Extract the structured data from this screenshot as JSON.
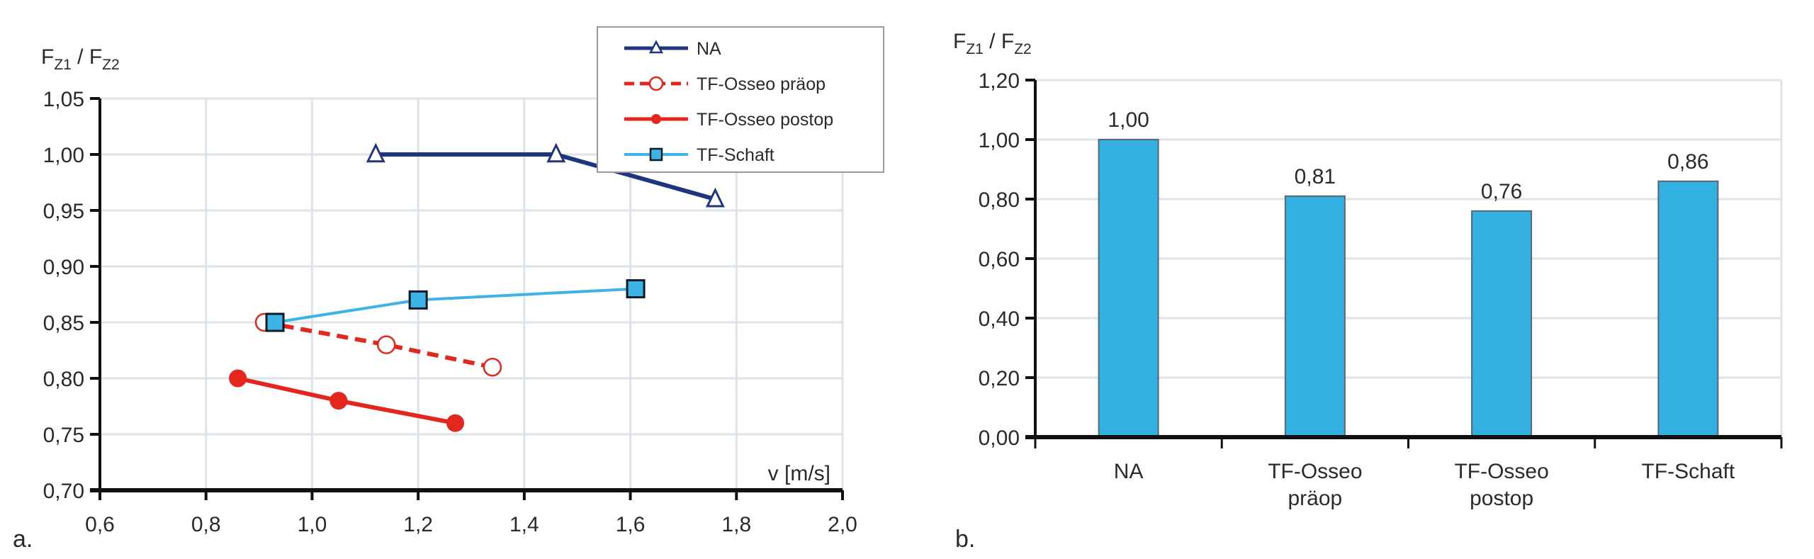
{
  "chart_data": [
    {
      "type": "line",
      "panel_label": "a.",
      "title": "",
      "ylabel": {
        "main": "F",
        "sub1": "Z1",
        "sep": " / ",
        "main2": "F",
        "sub2": "Z2"
      },
      "xlabel": "v [m/s]",
      "xlim": [
        0.6,
        2.0
      ],
      "ylim": [
        0.7,
        1.05
      ],
      "xticks": [
        "0,6",
        "0,8",
        "1,0",
        "1,2",
        "1,4",
        "1,6",
        "1,8",
        "2,0"
      ],
      "xtick_values": [
        0.6,
        0.8,
        1.0,
        1.2,
        1.4,
        1.6,
        1.8,
        2.0
      ],
      "yticks": [
        "0,70",
        "0,75",
        "0,80",
        "0,85",
        "0,90",
        "0,95",
        "1,00",
        "1,05"
      ],
      "ytick_values": [
        0.7,
        0.75,
        0.8,
        0.85,
        0.9,
        0.95,
        1.0,
        1.05
      ],
      "grid": true,
      "legend_position": "top-right",
      "series": [
        {
          "name": "NA",
          "color": "#1f3580",
          "marker": "triangle-open",
          "dash": false,
          "x": [
            1.12,
            1.46,
            1.76
          ],
          "y": [
            1.0,
            1.0,
            0.96
          ]
        },
        {
          "name": "TF-Osseo präop",
          "color": "#e3261e",
          "marker": "circle-open",
          "dash": true,
          "x": [
            0.91,
            1.14,
            1.34
          ],
          "y": [
            0.85,
            0.83,
            0.81
          ]
        },
        {
          "name": "TF-Osseo postop",
          "color": "#e3261e",
          "marker": "circle-filled",
          "dash": false,
          "x": [
            0.86,
            1.05,
            1.27
          ],
          "y": [
            0.8,
            0.78,
            0.76
          ]
        },
        {
          "name": "TF-Schaft",
          "color": "#3cb4e6",
          "marker": "square-filled",
          "dash": false,
          "x": [
            0.93,
            1.2,
            1.61
          ],
          "y": [
            0.85,
            0.87,
            0.88
          ]
        }
      ]
    },
    {
      "type": "bar",
      "panel_label": "b.",
      "title": "",
      "ylabel": {
        "main": "F",
        "sub1": "Z1",
        "sep": " / ",
        "main2": "F",
        "sub2": "Z2"
      },
      "xlabel": "",
      "ylim": [
        0.0,
        1.2
      ],
      "yticks": [
        "0,00",
        "0,20",
        "0,40",
        "0,60",
        "0,80",
        "1,00",
        "1,20"
      ],
      "ytick_values": [
        0.0,
        0.2,
        0.4,
        0.6,
        0.8,
        1.0,
        1.2
      ],
      "grid": true,
      "bar_color": "#33b0e2",
      "categories": [
        [
          "NA"
        ],
        [
          "TF-Osseo",
          "präop"
        ],
        [
          "TF-Osseo",
          "postop"
        ],
        [
          "TF-Schaft"
        ]
      ],
      "values": [
        1.0,
        0.81,
        0.76,
        0.86
      ],
      "data_labels": [
        "1,00",
        "0,81",
        "0,76",
        "0,86"
      ]
    }
  ]
}
